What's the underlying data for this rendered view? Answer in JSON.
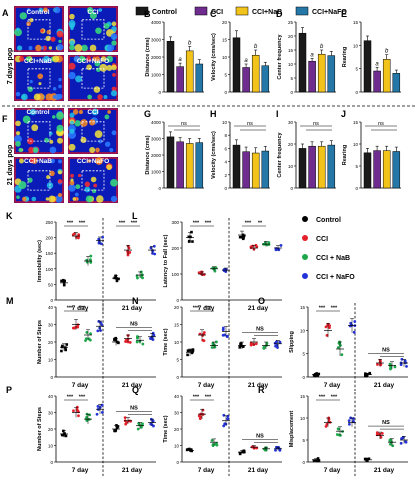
{
  "colors": {
    "control": "#000000",
    "cci": "#e4202b",
    "nab": "#1ca84a",
    "nafo": "#2433d8",
    "bar_control": "#1a1a1a",
    "bar_cci": "#6f2c8f",
    "bar_nab": "#f2c31b",
    "bar_nafo": "#2577a8"
  },
  "top_legend": [
    "Control",
    "CCI",
    "CCI+NaB",
    "CCI+NaFO"
  ],
  "side_legend": [
    "Control",
    "CCI",
    "CCI + NaB",
    "CCI + NaFO"
  ],
  "heatmaps": [
    {
      "letter": "A",
      "side_label": "7 days pop",
      "labels": [
        "Control",
        "CCI",
        "CCI+NaB",
        "CCI+NaFO"
      ]
    },
    {
      "letter": "F",
      "side_label": "21 days pop",
      "labels": [
        "Control",
        "CCI",
        "CCI+NaB",
        "CCI+NaFO"
      ]
    }
  ],
  "chart_data": [
    {
      "letter": "B",
      "type": "bar",
      "ylabel": "Distance (cms)",
      "ylim": [
        0,
        4000
      ],
      "yticks": [
        "0",
        "1000",
        "2000",
        "3000",
        "4000"
      ],
      "values": [
        2900,
        1450,
        2350,
        1600
      ],
      "errors": [
        250,
        200,
        250,
        250
      ],
      "marks": [
        "",
        "a",
        "b",
        ""
      ],
      "row": 1,
      "col": 0
    },
    {
      "letter": "C",
      "type": "bar",
      "ylabel": "Velocity (cms/sec)",
      "ylim": [
        0,
        20
      ],
      "yticks": [
        "0",
        "5",
        "10",
        "15",
        "20"
      ],
      "values": [
        15.5,
        7,
        10.5,
        7.5
      ],
      "errors": [
        2,
        1,
        1.5,
        1
      ],
      "marks": [
        "",
        "a",
        "b",
        ""
      ],
      "row": 1,
      "col": 1
    },
    {
      "letter": "D",
      "type": "bar",
      "ylabel": "Center frequency",
      "ylim": [
        0,
        25
      ],
      "yticks": [
        "0",
        "5",
        "10",
        "15",
        "20",
        "25"
      ],
      "values": [
        21,
        11,
        13.5,
        13
      ],
      "errors": [
        2,
        1,
        1.5,
        1.5
      ],
      "marks": [
        "",
        "a",
        "b",
        ""
      ],
      "row": 1,
      "col": 2
    },
    {
      "letter": "E",
      "type": "bar",
      "ylabel": "Rearing",
      "ylim": [
        0,
        15
      ],
      "yticks": [
        "0",
        "5",
        "10",
        "15"
      ],
      "values": [
        11,
        4.5,
        7,
        4
      ],
      "errors": [
        1,
        0.8,
        1,
        0.7
      ],
      "marks": [
        "",
        "a",
        "b",
        ""
      ],
      "row": 1,
      "col": 3
    },
    {
      "letter": "G",
      "type": "bar",
      "ylabel": "Distance (cms)",
      "ylim": [
        0,
        4000
      ],
      "yticks": [
        "0",
        "1000",
        "2000",
        "3000",
        "4000"
      ],
      "values": [
        3100,
        2800,
        2700,
        2750
      ],
      "errors": [
        300,
        250,
        300,
        250
      ],
      "ns": "ns",
      "row": 2,
      "col": 0
    },
    {
      "letter": "H",
      "type": "bar",
      "ylabel": "Velocity (cms/sec)",
      "ylim": [
        0,
        10
      ],
      "yticks": [
        "0",
        "2",
        "4",
        "6",
        "8",
        "10"
      ],
      "values": [
        6.5,
        5.5,
        5.3,
        5.6
      ],
      "errors": [
        0.8,
        0.7,
        0.8,
        0.7
      ],
      "ns": "ns",
      "row": 2,
      "col": 1
    },
    {
      "letter": "I",
      "type": "bar",
      "ylabel": "Center frequency",
      "ylim": [
        0,
        30
      ],
      "yticks": [
        "0",
        "10",
        "20",
        "30"
      ],
      "values": [
        18,
        19,
        19,
        19.5
      ],
      "errors": [
        2,
        2,
        2,
        2
      ],
      "ns": "ns",
      "row": 2,
      "col": 2
    },
    {
      "letter": "J",
      "type": "bar",
      "ylabel": "Rearing",
      "ylim": [
        0,
        15
      ],
      "yticks": [
        "0",
        "5",
        "10",
        "15"
      ],
      "values": [
        8,
        8.5,
        8.5,
        8.3
      ],
      "errors": [
        1,
        1,
        1,
        1
      ],
      "ns": "ns",
      "row": 2,
      "col": 3
    },
    {
      "letter": "K",
      "type": "scatter",
      "ylabel": "Immobility (sec)",
      "ylim": [
        0,
        250
      ],
      "yticks": [
        "0",
        "50",
        "100",
        "150",
        "200",
        "250"
      ],
      "groups": [
        {
          "label": "7 day",
          "means": [
            55,
            205,
            125,
            190
          ],
          "errors": [
            8,
            12,
            15,
            12
          ],
          "stars": [
            "***",
            "***"
          ],
          "ns": ""
        },
        {
          "label": "21 day",
          "means": [
            70,
            160,
            80,
            160
          ],
          "errors": [
            8,
            15,
            10,
            12
          ],
          "stars": [
            "***",
            "***"
          ],
          "ns": ""
        }
      ],
      "row": 3,
      "col": 0
    },
    {
      "letter": "L",
      "type": "scatter",
      "ylabel": "Latency to Fall (sec)",
      "ylim": [
        0,
        300
      ],
      "yticks": [
        "0",
        "100",
        "200",
        "300"
      ],
      "groups": [
        {
          "label": "7 day",
          "means": [
            240,
            100,
            120,
            115
          ],
          "errors": [
            20,
            8,
            8,
            8
          ],
          "stars": [
            "***",
            "***"
          ],
          "ns": ""
        },
        {
          "label": "21 day",
          "means": [
            250,
            200,
            215,
            200
          ],
          "errors": [
            15,
            10,
            10,
            10
          ],
          "stars": [
            "***",
            "**"
          ],
          "ns": ""
        }
      ],
      "row": 3,
      "col": 1
    },
    {
      "letter": "M",
      "type": "scatter",
      "ylabel": "Number of Steps",
      "ylim": [
        0,
        40
      ],
      "yticks": [
        "0",
        "10",
        "20",
        "30",
        "40"
      ],
      "groups": [
        {
          "label": "7 day",
          "means": [
            17,
            30,
            24,
            29
          ],
          "errors": [
            2,
            3,
            3,
            3
          ],
          "stars": [
            "***",
            "***"
          ],
          "ns": ""
        },
        {
          "label": "21 day",
          "means": [
            20,
            22,
            21,
            23
          ],
          "errors": [
            2,
            2,
            2,
            2
          ],
          "stars": [],
          "ns": "NS"
        }
      ],
      "row": 4,
      "col": 0
    },
    {
      "letter": "N",
      "type": "scatter",
      "ylabel": "Time (sec)",
      "ylim": [
        0,
        20
      ],
      "yticks": [
        "0",
        "5",
        "10",
        "15",
        "20"
      ],
      "groups": [
        {
          "label": "7 day",
          "means": [
            7,
            12,
            9,
            13
          ],
          "errors": [
            1,
            1.5,
            1,
            1.5
          ],
          "stars": [
            "***",
            "***"
          ],
          "ns": ""
        },
        {
          "label": "21 day",
          "means": [
            9,
            10,
            9,
            9.5
          ],
          "errors": [
            1,
            1,
            1,
            1
          ],
          "stars": [],
          "ns": "NS"
        }
      ],
      "row": 4,
      "col": 1
    },
    {
      "letter": "O",
      "type": "scatter",
      "ylabel": "Slipping",
      "ylim": [
        0,
        15
      ],
      "yticks": [
        "0",
        "5",
        "10",
        "15"
      ],
      "groups": [
        {
          "label": "7 day",
          "means": [
            0.5,
            10,
            6,
            11
          ],
          "errors": [
            0.3,
            1.5,
            1.5,
            1.5
          ],
          "stars": [
            "***",
            "***"
          ],
          "ns": ""
        },
        {
          "label": "21 day",
          "means": [
            0.5,
            3,
            2.5,
            3
          ],
          "errors": [
            0.3,
            0.8,
            0.8,
            0.8
          ],
          "stars": [],
          "ns": "NS"
        }
      ],
      "row": 4,
      "col": 2
    },
    {
      "letter": "P",
      "type": "scatter",
      "ylabel": "Number of Steps",
      "ylim": [
        0,
        40
      ],
      "yticks": [
        "0",
        "10",
        "20",
        "30",
        "40"
      ],
      "groups": [
        {
          "label": "7 day",
          "means": [
            17,
            30,
            26,
            32
          ],
          "errors": [
            2,
            3,
            3,
            3
          ],
          "stars": [
            "***",
            "***"
          ],
          "ns": ""
        },
        {
          "label": "21 day",
          "means": [
            20,
            25,
            22,
            24
          ],
          "errors": [
            2,
            2,
            2,
            2
          ],
          "stars": [],
          "ns": "NS"
        }
      ],
      "row": 5,
      "col": 0
    },
    {
      "letter": "Q",
      "type": "scatter",
      "ylabel": "Time (sec)",
      "ylim": [
        0,
        40
      ],
      "yticks": [
        "0",
        "10",
        "20",
        "30",
        "40"
      ],
      "groups": [
        {
          "label": "7 day",
          "means": [
            7,
            29,
            12,
            25
          ],
          "errors": [
            1,
            3,
            2,
            3
          ],
          "stars": [
            "***",
            "***"
          ],
          "ns": ""
        },
        {
          "label": "21 day",
          "means": [
            6,
            9,
            8,
            8
          ],
          "errors": [
            1,
            1,
            1,
            1
          ],
          "stars": [],
          "ns": "NS"
        }
      ],
      "row": 5,
      "col": 1
    },
    {
      "letter": "R",
      "type": "scatter",
      "ylabel": "Misplacement",
      "ylim": [
        0,
        15
      ],
      "yticks": [
        "0",
        "5",
        "10",
        "15"
      ],
      "groups": [
        {
          "label": "7 day",
          "means": [
            0.5,
            9,
            7,
            9
          ],
          "errors": [
            0.3,
            1,
            1,
            1
          ],
          "stars": [
            "***",
            "***"
          ],
          "ns": ""
        },
        {
          "label": "21 day",
          "means": [
            0.5,
            6,
            4.5,
            5
          ],
          "errors": [
            0.3,
            0.8,
            0.8,
            0.8
          ],
          "stars": [],
          "ns": "NS"
        }
      ],
      "row": 5,
      "col": 2
    }
  ]
}
